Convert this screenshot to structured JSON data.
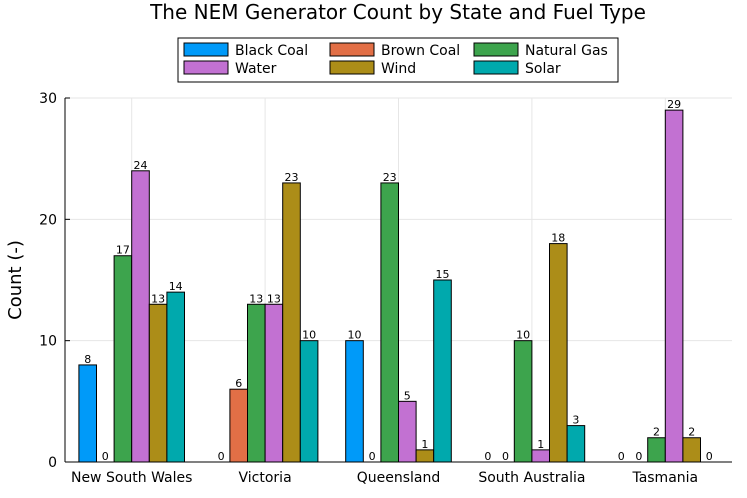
{
  "chart_data": {
    "type": "bar",
    "title": "The NEM Generator Count by State and Fuel Type",
    "xlabel": "",
    "ylabel": "Count (-)",
    "ylim": [
      0,
      30
    ],
    "yticks": [
      0,
      10,
      20,
      30
    ],
    "grid": true,
    "legend_position": "top",
    "categories": [
      "New South Wales",
      "Victoria",
      "Queensland",
      "South Australia",
      "Tasmania"
    ],
    "series": [
      {
        "name": "Black Coal",
        "color": "#009af9",
        "values": [
          8,
          0,
          10,
          0,
          0
        ]
      },
      {
        "name": "Brown Coal",
        "color": "#e26f46",
        "values": [
          0,
          6,
          0,
          0,
          0
        ]
      },
      {
        "name": "Natural Gas",
        "color": "#3da44d",
        "values": [
          17,
          13,
          23,
          10,
          2
        ]
      },
      {
        "name": "Water",
        "color": "#c271d2",
        "values": [
          24,
          13,
          5,
          1,
          29
        ]
      },
      {
        "name": "Wind",
        "color": "#ac8d18",
        "values": [
          13,
          23,
          1,
          18,
          2
        ]
      },
      {
        "name": "Solar",
        "color": "#00a9ad",
        "values": [
          14,
          10,
          15,
          3,
          0
        ]
      }
    ],
    "value_labels": [
      [
        "8",
        "0",
        "17",
        "24",
        "13",
        "14"
      ],
      [
        "0",
        "6",
        "13",
        "13",
        "23",
        "10"
      ],
      [
        "10",
        "0",
        "23",
        "5",
        "1",
        "15"
      ],
      [
        "0",
        "0",
        "10",
        "1",
        "18",
        "3"
      ],
      [
        "0",
        "0",
        "2",
        "29",
        "2",
        "0"
      ]
    ]
  }
}
